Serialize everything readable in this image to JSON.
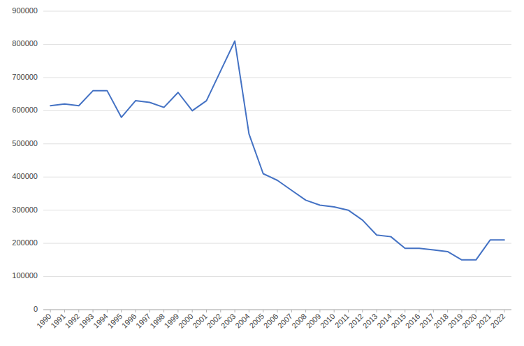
{
  "chart_data": {
    "type": "line",
    "x": [
      1990,
      1991,
      1992,
      1993,
      1994,
      1995,
      1996,
      1997,
      1998,
      1999,
      2000,
      2001,
      2002,
      2003,
      2004,
      2005,
      2006,
      2007,
      2008,
      2009,
      2010,
      2011,
      2012,
      2013,
      2014,
      2015,
      2016,
      2017,
      2018,
      2019,
      2020,
      2021,
      2022
    ],
    "values": [
      615000,
      620000,
      615000,
      660000,
      660000,
      580000,
      630000,
      625000,
      610000,
      655000,
      600000,
      630000,
      720000,
      810000,
      530000,
      410000,
      390000,
      360000,
      330000,
      315000,
      310000,
      300000,
      270000,
      225000,
      220000,
      185000,
      185000,
      180000,
      175000,
      150000,
      150000,
      210000,
      210000
    ],
    "color": "#4472c4",
    "xlim": [
      1989.5,
      2022.5
    ],
    "xticks": [
      1990,
      1991,
      1992,
      1993,
      1994,
      1995,
      1996,
      1997,
      1998,
      1999,
      2000,
      2001,
      2002,
      2003,
      2004,
      2005,
      2006,
      2007,
      2008,
      2009,
      2010,
      2011,
      2012,
      2013,
      2014,
      2015,
      2016,
      2017,
      2018,
      2019,
      2020,
      2021,
      2022
    ],
    "ylim": [
      0,
      900000
    ],
    "yticks": [
      0,
      100000,
      200000,
      300000,
      400000,
      500000,
      600000,
      700000,
      800000,
      900000
    ],
    "grid": true
  }
}
